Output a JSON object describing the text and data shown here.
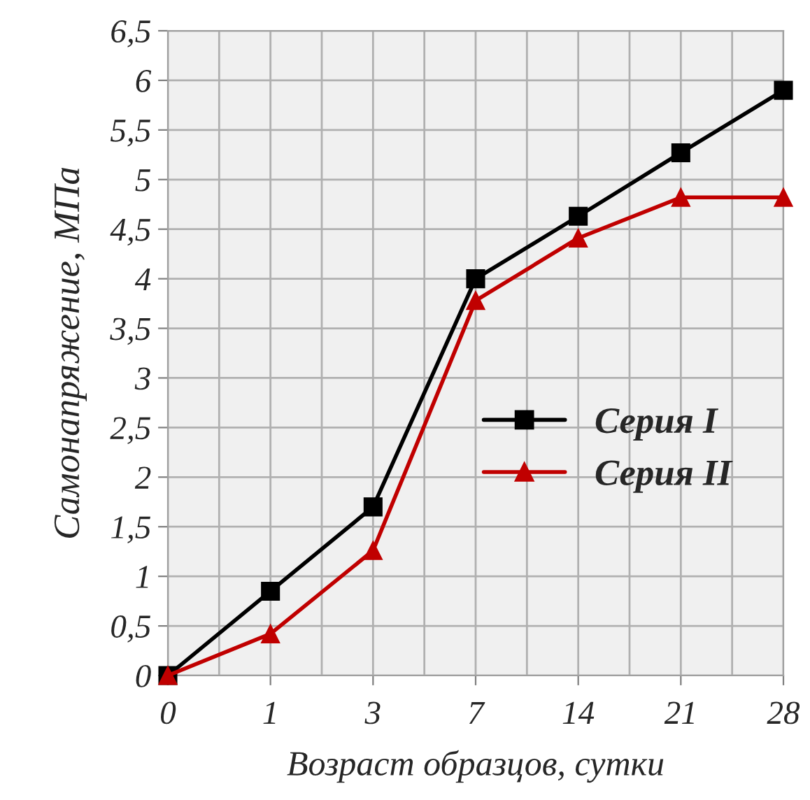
{
  "chart_data": {
    "type": "line",
    "xlabel": "Возраст образцов, сутки",
    "ylabel": "Самонапряжение, МПа",
    "categories": [
      "0",
      "1",
      "3",
      "7",
      "14",
      "21",
      "28"
    ],
    "series": [
      {
        "name": "Серия I",
        "color": "#000000",
        "marker": "square",
        "values": [
          0,
          0.85,
          1.7,
          4.0,
          4.63,
          5.27,
          5.9
        ]
      },
      {
        "name": "Серия II",
        "color": "#c00000",
        "marker": "triangle",
        "values": [
          0,
          0.42,
          1.26,
          3.78,
          4.41,
          4.82,
          4.82
        ]
      }
    ],
    "ylim": [
      0,
      6.5
    ],
    "yticks": [
      0,
      {
        "value": 0.5,
        "label": "0,5"
      },
      1,
      {
        "value": 1.5,
        "label": "1,5"
      },
      2,
      {
        "value": 2.5,
        "label": "2,5"
      },
      3,
      {
        "value": 3.5,
        "label": "3,5"
      },
      4,
      {
        "value": 4.5,
        "label": "4,5"
      },
      5,
      {
        "value": 5.5,
        "label": "5,5"
      },
      6,
      {
        "value": 6.5,
        "label": "6,5"
      }
    ],
    "grid": true,
    "legend": "center right",
    "line_style": "solid"
  }
}
